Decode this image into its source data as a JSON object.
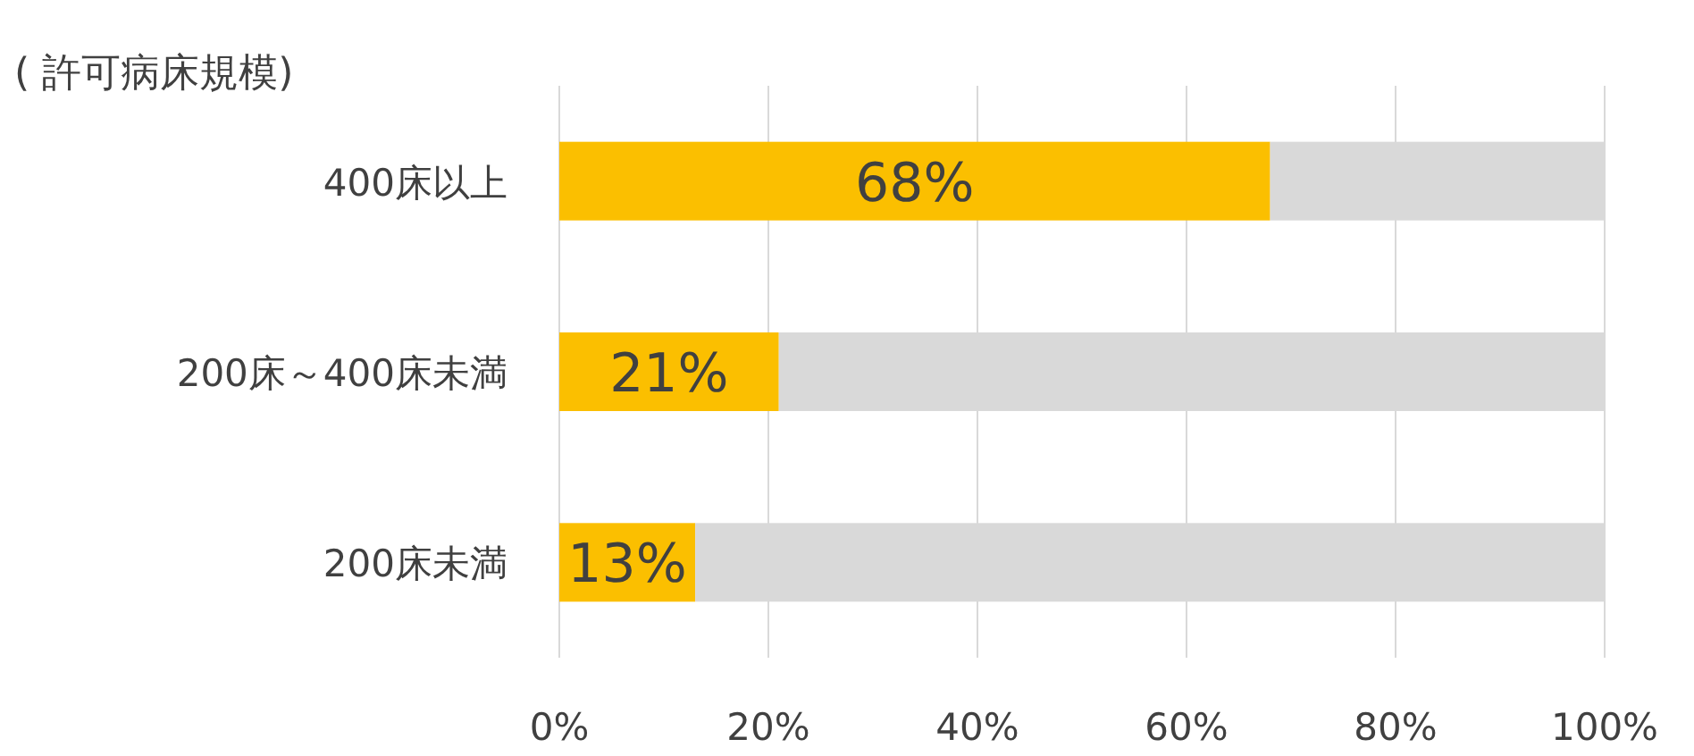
{
  "chart_data": {
    "type": "bar",
    "orientation": "horizontal",
    "stacked": true,
    "ylabel": "( 許可病床規模)",
    "categories": [
      "400床以上",
      "200床～400床未満",
      "200床未満"
    ],
    "series": [
      {
        "color": "#fbbf00",
        "values": [
          68,
          21,
          13
        ],
        "value_labels": [
          "68%",
          "21%",
          "13%"
        ]
      },
      {
        "color": "#d9d9d9",
        "values": [
          32,
          79,
          87
        ]
      }
    ],
    "xlim": [
      0,
      100
    ],
    "xticks": [
      {
        "value": 0,
        "label": "0%"
      },
      {
        "value": 20,
        "label": "20%"
      },
      {
        "value": 40,
        "label": "40%"
      },
      {
        "value": 60,
        "label": "60%"
      },
      {
        "value": 80,
        "label": "80%"
      },
      {
        "value": 100,
        "label": "100%"
      }
    ],
    "grid": "x"
  }
}
